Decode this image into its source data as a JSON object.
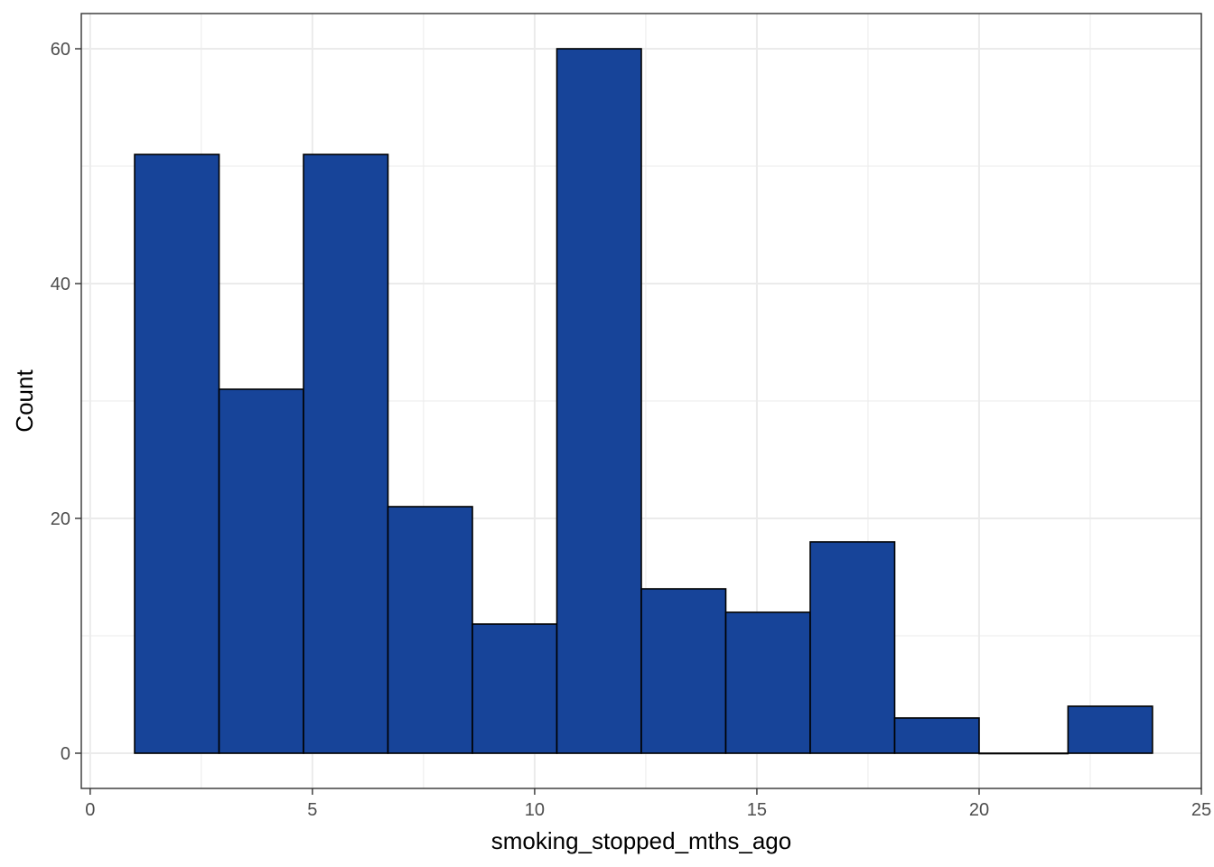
{
  "chart_data": {
    "type": "bar",
    "subtype": "histogram",
    "xlabel": "smoking_stopped_mths_ago",
    "ylabel": "Count",
    "xlim": [
      -0.2,
      25.0
    ],
    "ylim": [
      -3,
      63
    ],
    "x_ticks": [
      "0",
      "5",
      "10",
      "15",
      "20",
      "25"
    ],
    "y_ticks": [
      "0",
      "20",
      "40",
      "60"
    ],
    "bins": [
      {
        "start": 1.0,
        "end": 2.9,
        "count": 51
      },
      {
        "start": 2.9,
        "end": 4.8,
        "count": 31
      },
      {
        "start": 4.8,
        "end": 6.7,
        "count": 51
      },
      {
        "start": 6.7,
        "end": 8.6,
        "count": 21
      },
      {
        "start": 8.6,
        "end": 10.5,
        "count": 11
      },
      {
        "start": 10.5,
        "end": 12.4,
        "count": 60
      },
      {
        "start": 12.4,
        "end": 14.3,
        "count": 14
      },
      {
        "start": 14.3,
        "end": 16.2,
        "count": 12
      },
      {
        "start": 16.2,
        "end": 18.1,
        "count": 18
      },
      {
        "start": 18.1,
        "end": 20.0,
        "count": 3
      },
      {
        "start": 20.0,
        "end": 22.0,
        "count": 0
      },
      {
        "start": 22.0,
        "end": 23.9,
        "count": 4
      }
    ],
    "grid": true,
    "colors": {
      "fill": "#174499",
      "stroke": "#000000",
      "grid": "#ebebeb",
      "panel_border": "#333333"
    }
  }
}
